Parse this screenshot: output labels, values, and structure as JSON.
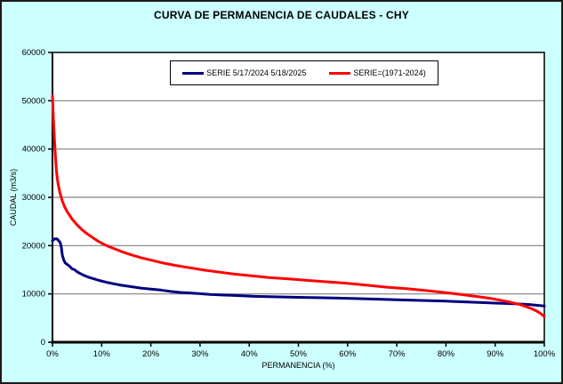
{
  "window": {
    "background_color": "#CCFFFF",
    "border_color": "#1a1a1a",
    "plot_background": "#FFFFFF",
    "grid_color": "#808080"
  },
  "chart_data": {
    "type": "line",
    "title": "CURVA DE PERMANENCIA DE CAUDALES - CHY",
    "xlabel": "PERMANENCIA (%)",
    "ylabel": "CAUDAL (m3/s)",
    "xlim": [
      0,
      100
    ],
    "ylim": [
      0,
      60000
    ],
    "grid": "horizontal",
    "legend_position": "top-center",
    "x_ticks": [
      {
        "value": 0,
        "label": "0%"
      },
      {
        "value": 10,
        "label": "10%"
      },
      {
        "value": 20,
        "label": "20%"
      },
      {
        "value": 30,
        "label": "30%"
      },
      {
        "value": 40,
        "label": "40%"
      },
      {
        "value": 50,
        "label": "50%"
      },
      {
        "value": 60,
        "label": "60%"
      },
      {
        "value": 70,
        "label": "70%"
      },
      {
        "value": 80,
        "label": "80%"
      },
      {
        "value": 90,
        "label": "90%"
      },
      {
        "value": 100,
        "label": "100%"
      }
    ],
    "y_ticks": [
      {
        "value": 0,
        "label": "0"
      },
      {
        "value": 10000,
        "label": "10000"
      },
      {
        "value": 20000,
        "label": "20000"
      },
      {
        "value": 30000,
        "label": "30000"
      },
      {
        "value": 40000,
        "label": "40000"
      },
      {
        "value": 50000,
        "label": "50000"
      },
      {
        "value": 60000,
        "label": "60000"
      }
    ],
    "series": [
      {
        "name": "SERIE 5/17/2024 5/18/2025",
        "color": "#000080",
        "points": [
          [
            0,
            21000
          ],
          [
            0.4,
            21400
          ],
          [
            0.9,
            21400
          ],
          [
            1.3,
            21000
          ],
          [
            1.6,
            20600
          ],
          [
            1.8,
            19600
          ],
          [
            2.0,
            18000
          ],
          [
            2.3,
            17000
          ],
          [
            2.6,
            16400
          ],
          [
            3.0,
            16100
          ],
          [
            3.5,
            15700
          ],
          [
            4.0,
            15200
          ],
          [
            4.5,
            15000
          ],
          [
            5.0,
            14600
          ],
          [
            5.5,
            14300
          ],
          [
            6.5,
            13800
          ],
          [
            7.5,
            13400
          ],
          [
            8.5,
            13100
          ],
          [
            9.5,
            12800
          ],
          [
            11,
            12400
          ],
          [
            12.5,
            12100
          ],
          [
            14,
            11800
          ],
          [
            16,
            11500
          ],
          [
            18,
            11200
          ],
          [
            20,
            11000
          ],
          [
            22,
            10800
          ],
          [
            24,
            10500
          ],
          [
            26,
            10300
          ],
          [
            28,
            10200
          ],
          [
            30,
            10050
          ],
          [
            32,
            9900
          ],
          [
            35,
            9750
          ],
          [
            38,
            9650
          ],
          [
            41,
            9500
          ],
          [
            45,
            9400
          ],
          [
            50,
            9300
          ],
          [
            55,
            9200
          ],
          [
            60,
            9100
          ],
          [
            65,
            8950
          ],
          [
            70,
            8800
          ],
          [
            75,
            8650
          ],
          [
            80,
            8500
          ],
          [
            85,
            8300
          ],
          [
            90,
            8100
          ],
          [
            94,
            7950
          ],
          [
            97,
            7800
          ],
          [
            100,
            7500
          ]
        ]
      },
      {
        "name": "SERIE=(1971-2024)",
        "color": "#FF0000",
        "points": [
          [
            0,
            51000
          ],
          [
            0.2,
            46000
          ],
          [
            0.5,
            40000
          ],
          [
            0.8,
            35500
          ],
          [
            1.1,
            33000
          ],
          [
            1.5,
            31000
          ],
          [
            2,
            29200
          ],
          [
            2.5,
            28000
          ],
          [
            3,
            27000
          ],
          [
            4,
            25500
          ],
          [
            5,
            24300
          ],
          [
            6,
            23300
          ],
          [
            7,
            22500
          ],
          [
            8,
            21800
          ],
          [
            9,
            21100
          ],
          [
            10,
            20500
          ],
          [
            11,
            20000
          ],
          [
            12.5,
            19400
          ],
          [
            14,
            18800
          ],
          [
            16,
            18100
          ],
          [
            18,
            17500
          ],
          [
            20,
            17000
          ],
          [
            22.5,
            16400
          ],
          [
            25,
            15900
          ],
          [
            28,
            15400
          ],
          [
            31,
            14900
          ],
          [
            34,
            14500
          ],
          [
            37,
            14100
          ],
          [
            40,
            13800
          ],
          [
            44,
            13400
          ],
          [
            48,
            13100
          ],
          [
            52,
            12800
          ],
          [
            56,
            12500
          ],
          [
            60,
            12200
          ],
          [
            64,
            11800
          ],
          [
            68,
            11400
          ],
          [
            72,
            11100
          ],
          [
            76,
            10700
          ],
          [
            80,
            10250
          ],
          [
            83,
            9900
          ],
          [
            86,
            9500
          ],
          [
            89,
            9100
          ],
          [
            91,
            8700
          ],
          [
            93,
            8300
          ],
          [
            95,
            7800
          ],
          [
            96.5,
            7300
          ],
          [
            97.5,
            6900
          ],
          [
            98.5,
            6400
          ],
          [
            99.3,
            5900
          ],
          [
            100,
            5300
          ]
        ]
      }
    ]
  }
}
